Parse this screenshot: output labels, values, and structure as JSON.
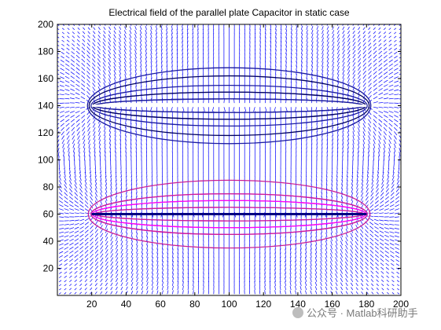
{
  "chart_data": {
    "type": "quiver",
    "title": "Electrical field of the parallel plate Capacitor in static case",
    "xlabel": "",
    "ylabel": "",
    "xlim": [
      0,
      200
    ],
    "ylim": [
      0,
      200
    ],
    "xticks": [
      20,
      40,
      60,
      80,
      100,
      120,
      140,
      160,
      180,
      200
    ],
    "yticks": [
      20,
      40,
      60,
      80,
      100,
      120,
      140,
      160,
      180,
      200
    ],
    "grid": false,
    "field_color": "#0000ff",
    "contour_colors": [
      "#1a1aa0",
      "#000060",
      "#c81e96",
      "#ff00ff"
    ],
    "plates": [
      {
        "name": "",
        "y": 140,
        "x_start": 20,
        "x_end": 180,
        "color": "#ffffff"
      },
      {
        "name": "",
        "y": 60,
        "x_start": 20,
        "x_end": 180,
        "color": "#000080"
      }
    ],
    "equipotential_upper": [
      130,
      135,
      145,
      150,
      155,
      162,
      168
    ],
    "equipotential_lower": [
      35,
      45,
      50,
      55,
      65,
      70,
      75
    ]
  },
  "watermark": {
    "text": "公众号 · Matlab科研助手"
  }
}
